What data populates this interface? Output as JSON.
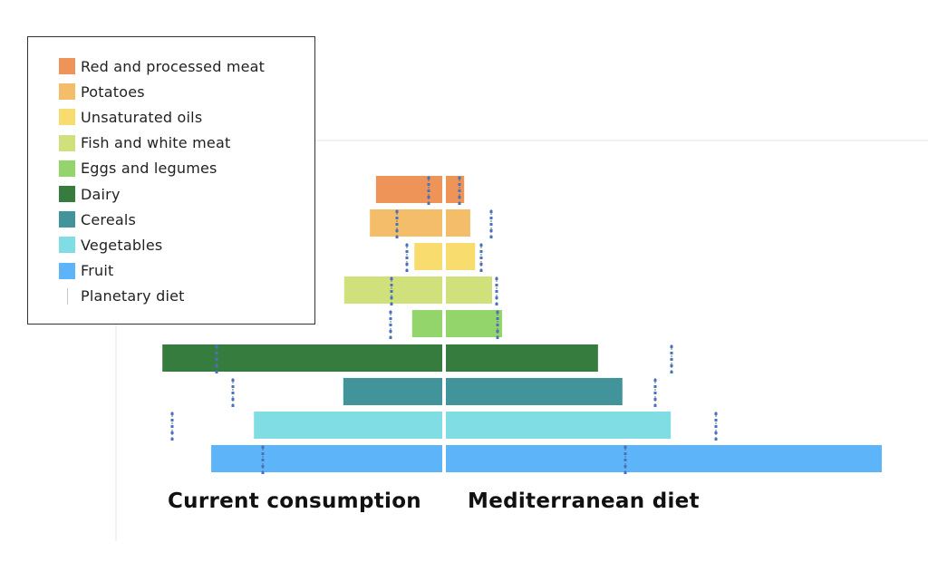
{
  "chart_data": {
    "type": "bar",
    "subtype": "diverging-horizontal",
    "title": "",
    "value_units": "relative (Mediterranean fruit = 100)",
    "categories": [
      "Red and processed meat",
      "Potatoes",
      "Unsaturated oils",
      "Fish and white meat",
      "Eggs and legumes",
      "Dairy",
      "Cereals",
      "Vegetables",
      "Fruit"
    ],
    "colors": [
      "#ee9458",
      "#f4bd6a",
      "#f9dc6e",
      "#d0e07a",
      "#93d56a",
      "#367c3f",
      "#41959a",
      "#80dde3",
      "#5db4f9"
    ],
    "series": [
      {
        "name": "Current consumption",
        "side": "left",
        "values": [
          15.2,
          16.6,
          6.4,
          22.5,
          6.9,
          64.2,
          22.7,
          43.2,
          53.0
        ]
      },
      {
        "name": "Mediterranean diet",
        "side": "right",
        "values": [
          4.2,
          5.6,
          6.7,
          10.6,
          12.9,
          34.9,
          40.5,
          51.6,
          100
        ]
      },
      {
        "name": "Planetary diet",
        "type": "reference-marker",
        "values": [
          3.2,
          10.3,
          8.2,
          11.7,
          11.9,
          51.8,
          48.1,
          62.0,
          41.2
        ]
      }
    ],
    "axis_labels": {
      "left": "Current consumption",
      "right": "Mediterranean diet"
    },
    "legend": {
      "placement": "top-left",
      "entries": [
        "Red and processed meat",
        "Potatoes",
        "Unsaturated oils",
        "Fish and white meat",
        "Eggs and legumes",
        "Dairy",
        "Cereals",
        "Vegetables",
        "Fruit",
        "Planetary diet"
      ]
    },
    "marker_color": "#4472c4",
    "grid": false
  }
}
